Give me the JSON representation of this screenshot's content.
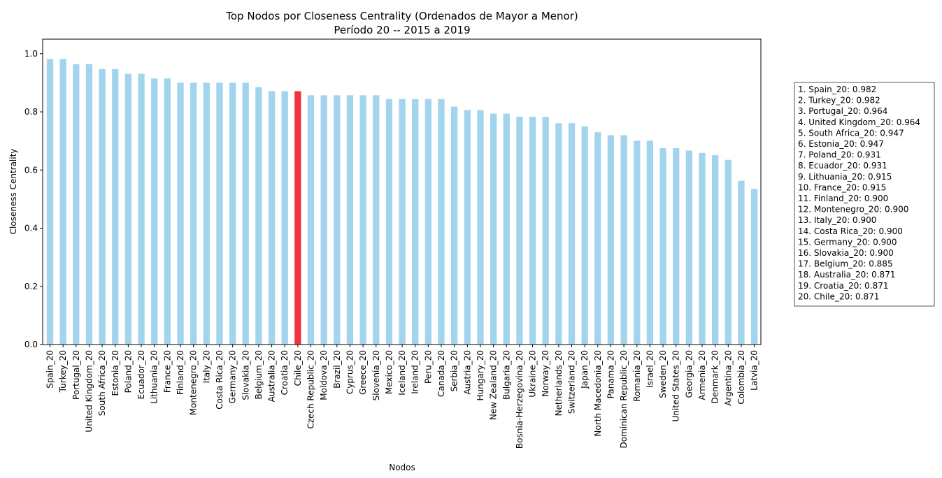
{
  "chart_data": {
    "type": "bar",
    "title": "Top Nodos por Closeness Centrality (Ordenados de Mayor a Menor)",
    "subtitle": "Período 20 -- 2015 a 2019",
    "xlabel": "Nodos",
    "ylabel": "Closeness Centrality",
    "ylim": [
      0,
      1.05
    ],
    "yticks": [
      "0.0",
      "0.2",
      "0.4",
      "0.6",
      "0.8",
      "1.0"
    ],
    "grid": false,
    "bar_color": "#a2d5ed",
    "highlight_color": "#f1323f",
    "highlight_category": "Chile_20",
    "categories": [
      "Spain_20",
      "Turkey_20",
      "Portugal_20",
      "United Kingdom_20",
      "South Africa_20",
      "Estonia_20",
      "Poland_20",
      "Ecuador_20",
      "Lithuania_20",
      "France_20",
      "Finland_20",
      "Montenegro_20",
      "Italy_20",
      "Costa Rica_20",
      "Germany_20",
      "Slovakia_20",
      "Belgium_20",
      "Australia_20",
      "Croatia_20",
      "Chile_20",
      "Czech Republic_20",
      "Moldova_20",
      "Brazil_20",
      "Cyprus_20",
      "Greece_20",
      "Slovenia_20",
      "Mexico_20",
      "Iceland_20",
      "Ireland_20",
      "Peru_20",
      "Canada_20",
      "Serbia_20",
      "Austria_20",
      "Hungary_20",
      "New Zealand_20",
      "Bulgaria_20",
      "Bosnia-Herzegovina_20",
      "Ukraine_20",
      "Norway_20",
      "Netherlands_20",
      "Switzerland_20",
      "Japan_20",
      "North Macedonia_20",
      "Panama_20",
      "Dominican Republic_20",
      "Romania_20",
      "Israel_20",
      "Sweden_20",
      "United States_20",
      "Georgia_20",
      "Armenia_20",
      "Denmark_20",
      "Argentina_20",
      "Colombia_20",
      "Latvia_20"
    ],
    "values": [
      0.982,
      0.982,
      0.964,
      0.964,
      0.947,
      0.947,
      0.931,
      0.931,
      0.915,
      0.915,
      0.9,
      0.9,
      0.9,
      0.9,
      0.9,
      0.9,
      0.885,
      0.871,
      0.871,
      0.871,
      0.857,
      0.857,
      0.857,
      0.857,
      0.857,
      0.857,
      0.844,
      0.844,
      0.844,
      0.844,
      0.844,
      0.818,
      0.806,
      0.806,
      0.794,
      0.794,
      0.783,
      0.783,
      0.783,
      0.761,
      0.761,
      0.75,
      0.73,
      0.72,
      0.72,
      0.701,
      0.701,
      0.675,
      0.675,
      0.667,
      0.659,
      0.651,
      0.635,
      0.563,
      0.535
    ],
    "legend": {
      "placement": "right",
      "entries": [
        "1. Spain_20: 0.982",
        "2. Turkey_20: 0.982",
        "3. Portugal_20: 0.964",
        "4. United Kingdom_20: 0.964",
        "5. South Africa_20: 0.947",
        "6. Estonia_20: 0.947",
        "7. Poland_20: 0.931",
        "8. Ecuador_20: 0.931",
        "9. Lithuania_20: 0.915",
        "10. France_20: 0.915",
        "11. Finland_20: 0.900",
        "12. Montenegro_20: 0.900",
        "13. Italy_20: 0.900",
        "14. Costa Rica_20: 0.900",
        "15. Germany_20: 0.900",
        "16. Slovakia_20: 0.900",
        "17. Belgium_20: 0.885",
        "18. Australia_20: 0.871",
        "19. Croatia_20: 0.871",
        "20. Chile_20: 0.871"
      ]
    }
  }
}
